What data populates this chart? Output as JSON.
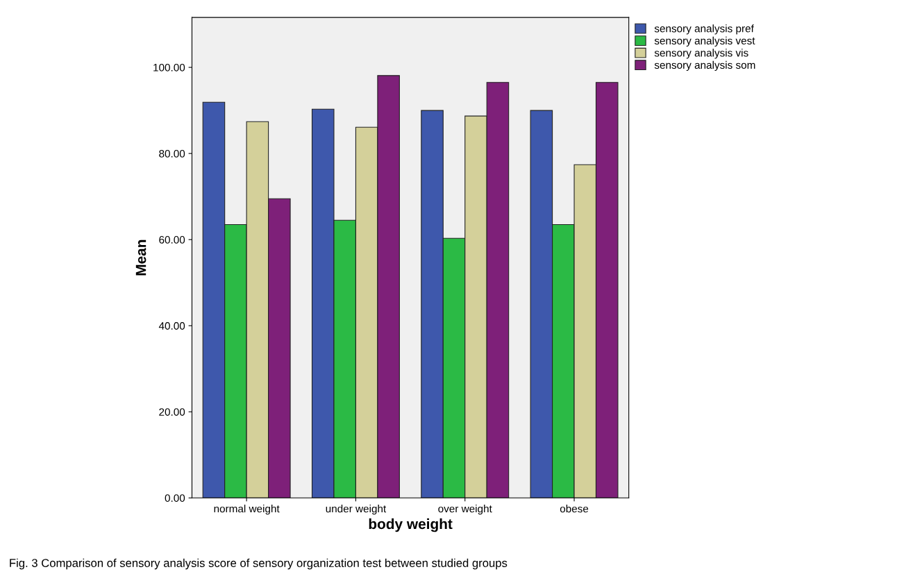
{
  "chart_data": {
    "type": "bar",
    "xlabel": "body weight",
    "ylabel": "Mean",
    "categories": [
      "normal weight",
      "under weight",
      "over weight",
      "obese"
    ],
    "series": [
      {
        "name": "sensory analysis pref",
        "color": "#3e58ac",
        "values": [
          91.9,
          90.3,
          90.0,
          90.0
        ]
      },
      {
        "name": "sensory analysis vest",
        "color": "#2bba45",
        "values": [
          63.5,
          64.5,
          60.3,
          63.5
        ]
      },
      {
        "name": "sensory analysis vis",
        "color": "#d4d09a",
        "values": [
          87.4,
          86.1,
          88.7,
          77.4
        ]
      },
      {
        "name": "sensory analysis som",
        "color": "#7e2079",
        "values": [
          69.5,
          98.1,
          96.5,
          96.5
        ]
      }
    ],
    "ylim": [
      0,
      111.6
    ],
    "yticks": [
      {
        "value": 0,
        "label": "0.00"
      },
      {
        "value": 20,
        "label": "20.00"
      },
      {
        "value": 40,
        "label": "40.00"
      },
      {
        "value": 60,
        "label": "60.00"
      },
      {
        "value": 80,
        "label": "80.00"
      },
      {
        "value": 100,
        "label": "100.00"
      }
    ],
    "grid": false,
    "legend": "top right",
    "annotations": [
      "Fig. 3 Comparison of sensory analysis score of sensory organization test between studied groups"
    ]
  }
}
